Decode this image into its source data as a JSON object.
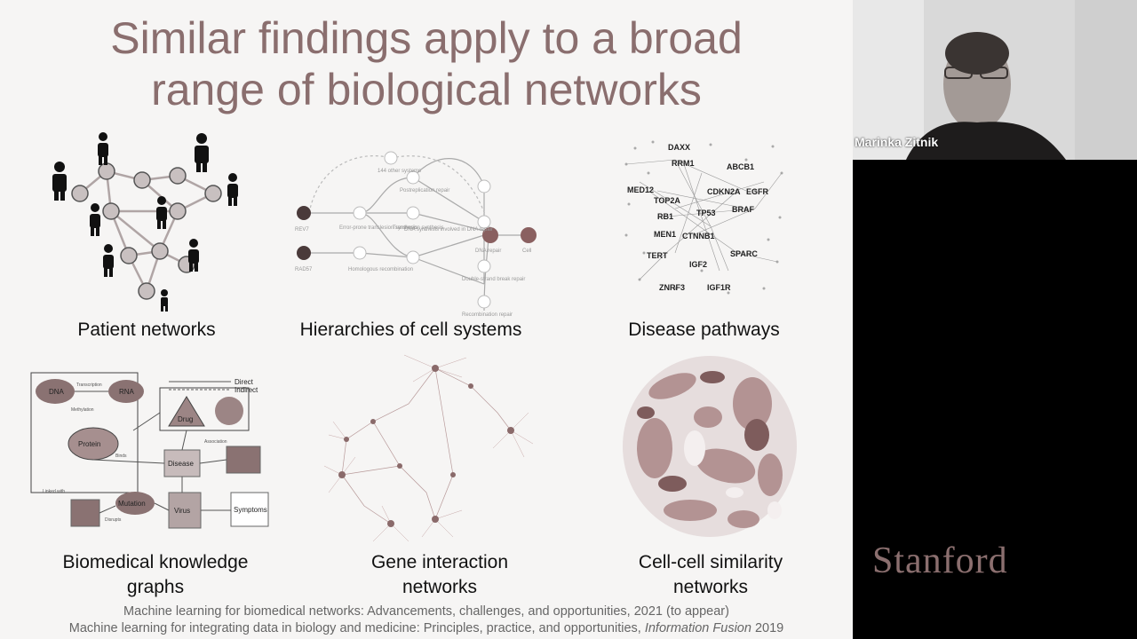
{
  "slide": {
    "title_line1": "Similar findings apply to a broad",
    "title_line2": "range of biological networks",
    "panels": [
      {
        "caption_line1": "Patient networks",
        "caption_line2": ""
      },
      {
        "caption_line1": "Hierarchies of cell systems",
        "caption_line2": ""
      },
      {
        "caption_line1": "Disease pathways",
        "caption_line2": ""
      },
      {
        "caption_line1": "Biomedical knowledge",
        "caption_line2": "graphs"
      },
      {
        "caption_line1": "Gene interaction",
        "caption_line2": "networks"
      },
      {
        "caption_line1": "Cell-cell similarity",
        "caption_line2": "networks"
      }
    ],
    "references": {
      "ref1": "Machine learning for biomedical networks: Advancements, challenges, and opportunities, 2021 (to appear)",
      "ref2_text": "Machine learning for integrating data in biology and medicine: Principles, practice, and opportunities,",
      "ref2_journal": "Information Fusion",
      "ref2_year": "2019"
    }
  },
  "hierarchy_labels": {
    "rev7": "REV7",
    "rad57": "RAD57",
    "other": "144 other systems",
    "error_prone": "Error-prone translesion synthesis",
    "translesion": "Translesion synthesis",
    "postreplication": "Postreplication repair",
    "dna_synthesis": "DNA synthesis involved in DNA repair",
    "homologous": "Homologous recombination",
    "double_strand": "Double-strand break repair",
    "recombination": "Recombination repair",
    "dna_repair": "DNA repair",
    "cell": "Cell"
  },
  "pathway_genes": {
    "daxx": "DAXX",
    "rrm1": "RRM1",
    "abcb1": "ABCB1",
    "med12": "MED12",
    "cdkn2a": "CDKN2A",
    "egfr": "EGFR",
    "top2a": "TOP2A",
    "braf": "BRAF",
    "tp53": "TP53",
    "rb1": "RB1",
    "men1": "MEN1",
    "ctnnb1": "CTNNB1",
    "tert": "TERT",
    "sparc": "SPARC",
    "igf2": "IGF2",
    "znrf3": "ZNRF3",
    "igf1r": "IGF1R"
  },
  "kg_labels": {
    "dna": "DNA",
    "rna": "RNA",
    "protein": "Protein",
    "drug": "Drug",
    "disease": "Disease",
    "mutation": "Mutation",
    "virus": "Virus",
    "symptoms": "Symptoms",
    "direct": "Direct",
    "indirect": "Indirect",
    "transcription": "Transcription",
    "methylation": "Methylation",
    "association": "Association",
    "linked_with": "Linked with",
    "disrupts": "Disrupts",
    "binds": "Binds"
  },
  "webcam": {
    "participant_name": "Marinka Zitnik"
  },
  "branding": {
    "logo_text": "Stanford"
  },
  "colors": {
    "title": "#8a6e6e",
    "slide_bg": "#f6f5f4",
    "logo": "#8b6f6f"
  }
}
